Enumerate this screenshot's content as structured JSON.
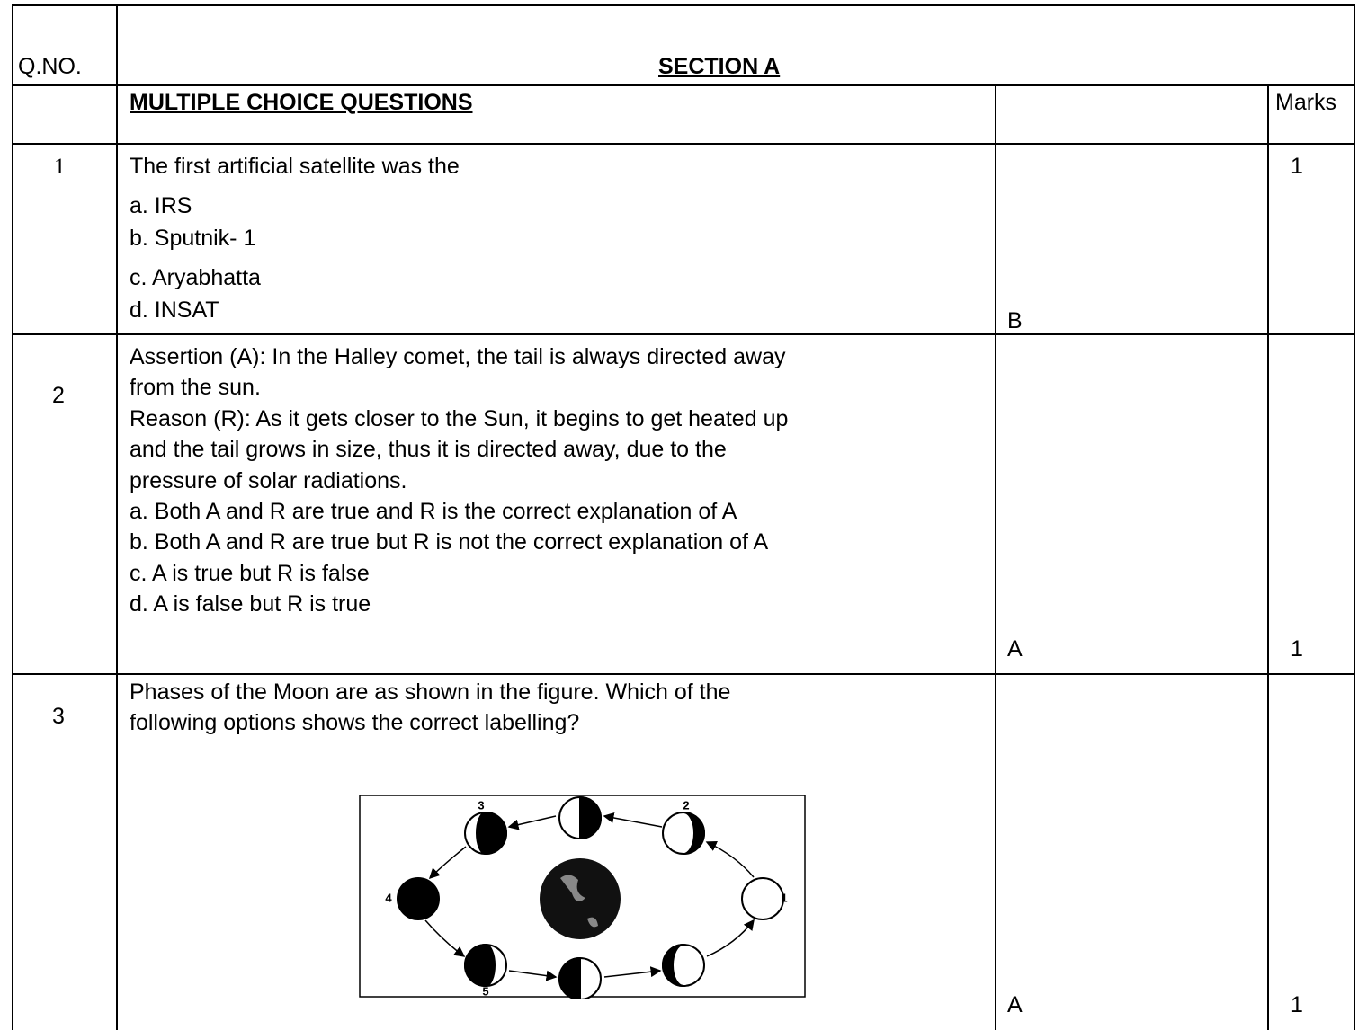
{
  "header": {
    "qno": "Q.NO.",
    "section": "SECTION A"
  },
  "subheader": {
    "title": "MULTIPLE CHOICE QUESTIONS",
    "marks": "Marks"
  },
  "questions": [
    {
      "number": "1",
      "lines": [
        "The first artificial satellite was the",
        "a.  IRS",
        "b.  Sputnik- 1",
        "c.  Aryabhatta",
        "d.  INSAT"
      ],
      "answer": "B",
      "marks": "1"
    },
    {
      "number": "2",
      "lines": [
        "Assertion (A): In the Halley comet, the tail is always directed away",
        "from the sun.",
        "Reason (R): As it gets closer to the Sun, it begins to get heated up",
        "and the tail grows in size, thus it is directed away, due to the",
        "pressure of solar radiations.",
        "a.  Both A and R are true and R is the correct explanation of A",
        "b.  Both A and R are true but R is not the correct explanation of A",
        "c.  A is true but R is false",
        "d.  A is false but R is true"
      ],
      "answer": "A",
      "marks": "1"
    },
    {
      "number": "3",
      "lines": [
        "Phases of the Moon are as shown in the figure. Which of the",
        "following options shows the correct labelling?"
      ],
      "answer": "A",
      "marks": "1"
    }
  ],
  "figure": {
    "labels": [
      "1",
      "2",
      "3",
      "4",
      "5"
    ]
  }
}
